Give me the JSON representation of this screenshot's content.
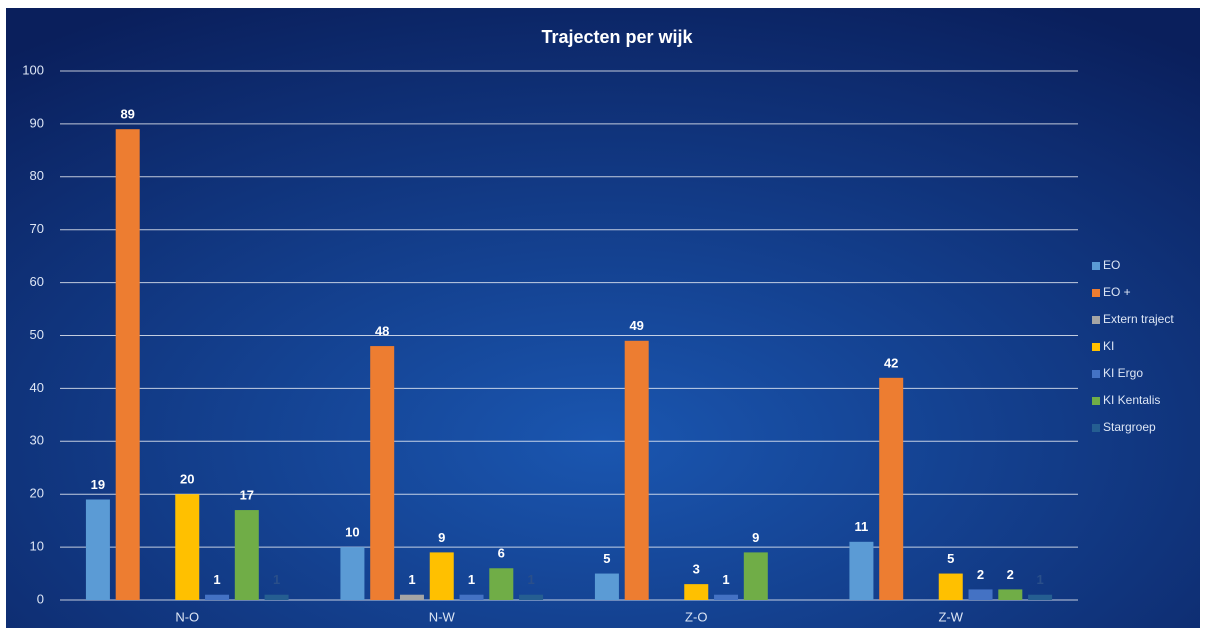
{
  "chart_data": {
    "type": "bar",
    "title": "Trajecten per wijk",
    "categories": [
      "N-O",
      "N-W",
      "Z-O",
      "Z-W"
    ],
    "series": [
      {
        "name": "EO",
        "color": "#5b9bd5",
        "values": [
          19,
          10,
          5,
          11
        ]
      },
      {
        "name": "EO +",
        "color": "#ed7d31",
        "values": [
          89,
          48,
          49,
          42
        ]
      },
      {
        "name": "Extern traject",
        "color": "#a5a5a5",
        "values": [
          null,
          1,
          null,
          null
        ]
      },
      {
        "name": "KI",
        "color": "#ffc000",
        "values": [
          20,
          9,
          3,
          5
        ]
      },
      {
        "name": "KI Ergo",
        "color": "#4472c4",
        "values": [
          1,
          1,
          1,
          2
        ]
      },
      {
        "name": "KI Kentalis",
        "color": "#70ad47",
        "values": [
          17,
          6,
          9,
          2
        ]
      },
      {
        "name": "Stargroep",
        "color": "#255e91",
        "values": [
          1,
          1,
          null,
          1
        ]
      }
    ],
    "ylim": [
      0,
      100
    ],
    "yticks": [
      0,
      10,
      20,
      30,
      40,
      50,
      60,
      70,
      80,
      90,
      100
    ],
    "grid": true,
    "legend": "right"
  }
}
